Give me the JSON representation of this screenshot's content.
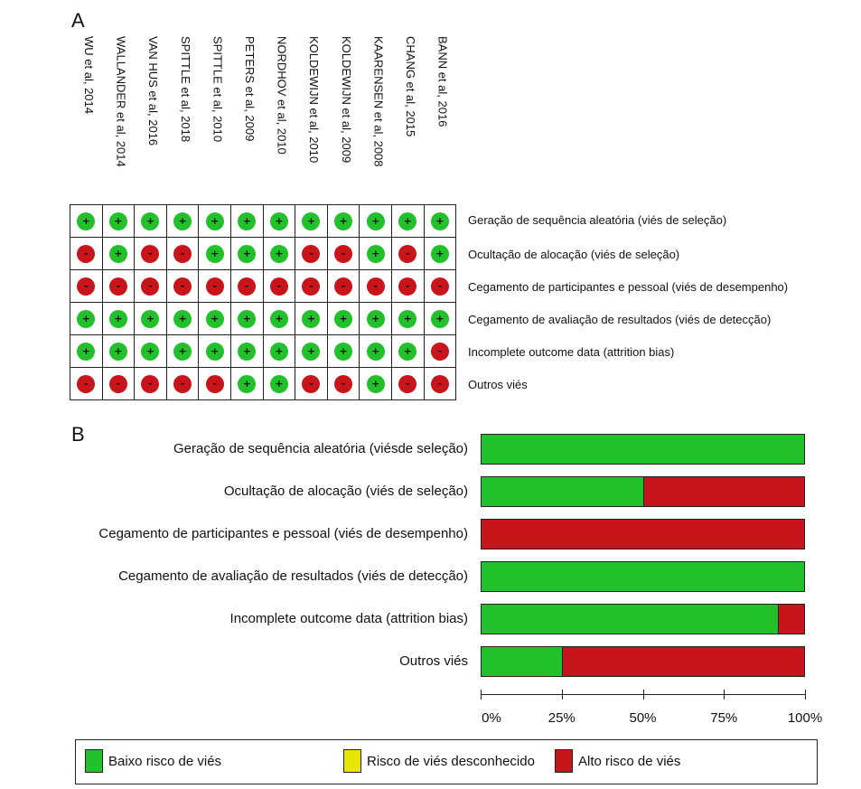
{
  "panels": {
    "a_label": "A",
    "b_label": "B"
  },
  "colors": {
    "low": "#22c02a",
    "unclear": "#e6e600",
    "high": "#c8141b",
    "grid": "#222222"
  },
  "chart_data": [
    {
      "type": "table",
      "studies": [
        "WU et al, 2014",
        "WALLANDER et al, 2014",
        "VAN HUS et al, 2016",
        "SPITTLE et al, 2018",
        "SPITTLE et al, 2010",
        "PETERS et al, 2009",
        "NORDHOV et al, 2010",
        "KOLDEWIJN et al, 2010",
        "KOLDEWIJN et al, 2009",
        "KAARENSEN et al, 2008",
        "CHANG et al, 2015",
        "BANN et al, 2016"
      ],
      "domains": [
        "Geração de sequência aleatória (viés de seleção)",
        "Ocultação de alocação (viés de seleção)",
        "Cegamento de participantes e pessoal (viés de desempenho)",
        "Cegamento de avaliação de resultados (viés de detecção)",
        "Incomplete outcome data (attrition bias)",
        "Outros viés"
      ],
      "judgements": [
        [
          "+",
          "+",
          "+",
          "+",
          "+",
          "+",
          "+",
          "+",
          "+",
          "+",
          "+",
          "+"
        ],
        [
          "-",
          "+",
          "-",
          "-",
          "+",
          "+",
          "+",
          "-",
          "-",
          "+",
          "-",
          "+"
        ],
        [
          "-",
          "-",
          "-",
          "-",
          "-",
          "-",
          "-",
          "-",
          "-",
          "-",
          "-",
          "-"
        ],
        [
          "+",
          "+",
          "+",
          "+",
          "+",
          "+",
          "+",
          "+",
          "+",
          "+",
          "+",
          "+"
        ],
        [
          "+",
          "+",
          "+",
          "+",
          "+",
          "+",
          "+",
          "+",
          "+",
          "+",
          "+",
          "-"
        ],
        [
          "-",
          "-",
          "-",
          "-",
          "-",
          "+",
          "+",
          "-",
          "-",
          "+",
          "-",
          "-"
        ]
      ]
    },
    {
      "type": "bar",
      "orientation": "horizontal-stacked-percent",
      "categories": [
        "Geração de sequência aleatória (viésde seleção)",
        "Ocultação de alocação (viés de seleção)",
        "Cegamento de participantes e pessoal (viés de desempenho)",
        "Cegamento de avaliação de resultados (viés de detecção)",
        "Incomplete outcome data (attrition bias)",
        "Outros viés"
      ],
      "series": [
        {
          "name": "Baixo risco de viés",
          "values": [
            100,
            50,
            0,
            100,
            92,
            25
          ]
        },
        {
          "name": "Risco de viés desconhecido",
          "values": [
            0,
            0,
            0,
            0,
            0,
            0
          ]
        },
        {
          "name": "Alto risco de viés",
          "values": [
            0,
            50,
            100,
            0,
            8,
            75
          ]
        }
      ],
      "xlim": [
        0,
        100
      ],
      "xticks": [
        "0%",
        "25%",
        "50%",
        "75%",
        "100%"
      ],
      "legend_position": "bottom"
    }
  ]
}
